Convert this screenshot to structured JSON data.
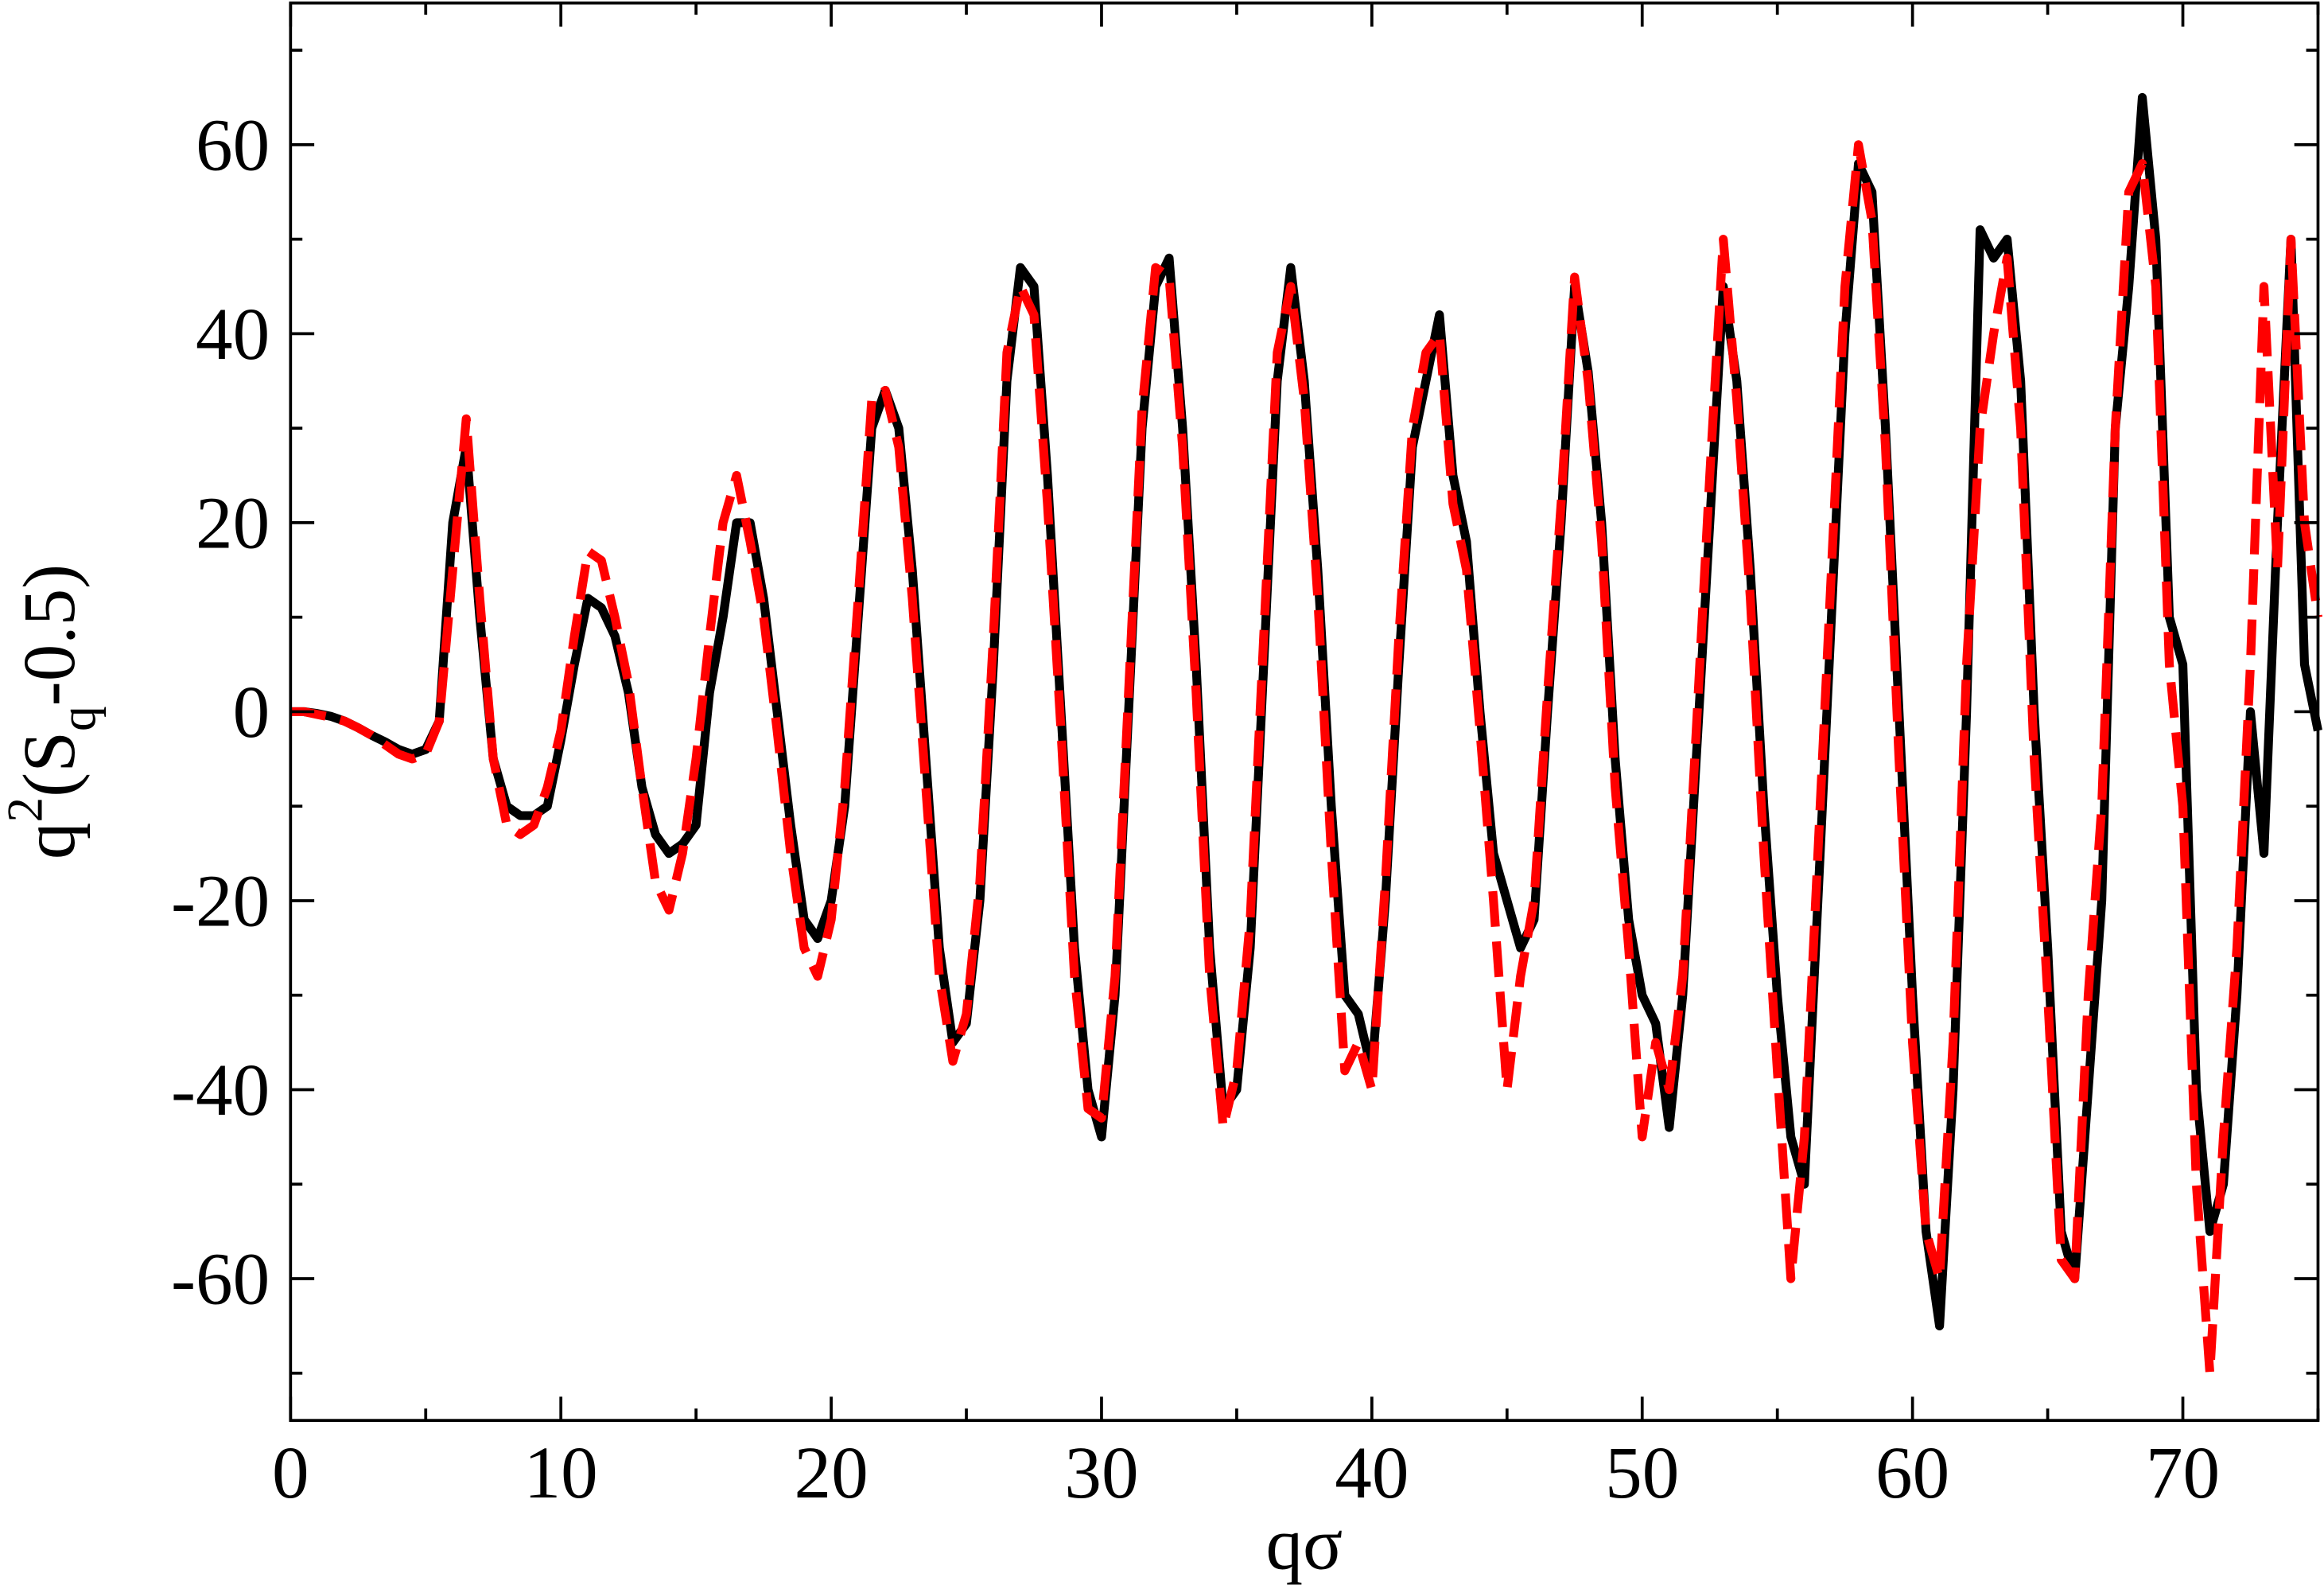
{
  "chart_data": {
    "type": "line",
    "xlabel": "qσ",
    "ylabel": [
      "q",
      "2",
      "(S",
      "q",
      "-0.5)"
    ],
    "xlim": [
      0,
      75
    ],
    "ylim": [
      -75,
      75
    ],
    "xticks": [
      0,
      10,
      20,
      30,
      40,
      50,
      60,
      70
    ],
    "yticks": [
      -60,
      -40,
      -20,
      0,
      20,
      40,
      60
    ],
    "xticks_minor": [
      5,
      15,
      25,
      35,
      45,
      55,
      65,
      75
    ],
    "yticks_minor": [
      -70,
      -50,
      -30,
      -10,
      10,
      30,
      50,
      70
    ],
    "x": [
      0,
      0.5,
      1,
      1.5,
      2,
      2.5,
      3,
      3.5,
      4,
      4.5,
      5,
      5.5,
      6,
      6.5,
      7,
      7.5,
      8,
      8.5,
      9,
      9.5,
      10,
      10.5,
      11,
      11.5,
      12,
      12.5,
      13,
      13.5,
      14,
      14.5,
      15,
      15.5,
      16,
      16.5,
      17,
      17.5,
      18,
      18.5,
      19,
      19.5,
      20,
      20.5,
      21,
      21.5,
      22,
      22.5,
      23,
      23.5,
      24,
      24.5,
      25,
      25.5,
      26,
      26.5,
      27,
      27.5,
      28,
      28.5,
      29,
      29.5,
      30,
      30.5,
      31,
      31.5,
      32,
      32.5,
      33,
      33.5,
      34,
      34.5,
      35,
      35.5,
      36,
      36.5,
      37,
      37.5,
      38,
      38.5,
      39,
      39.5,
      40,
      40.5,
      41,
      41.5,
      42,
      42.5,
      43,
      43.5,
      44,
      44.5,
      45,
      45.5,
      46,
      46.5,
      47,
      47.5,
      48,
      48.5,
      49,
      49.5,
      50,
      50.5,
      51,
      51.5,
      52,
      52.5,
      53,
      53.5,
      54,
      54.5,
      55,
      55.5,
      56,
      56.5,
      57,
      57.5,
      58,
      58.5,
      59,
      59.5,
      60,
      60.5,
      61,
      61.5,
      62,
      62.5,
      63,
      63.5,
      64,
      64.5,
      65,
      65.5,
      66,
      66.5,
      67,
      67.5,
      68,
      68.5,
      69,
      69.5,
      70,
      70.5,
      71,
      71.5,
      72,
      72.5,
      73,
      73.5,
      74,
      74.5,
      75
    ],
    "series": [
      {
        "color": "#000000",
        "dash": false,
        "values": [
          0,
          0,
          -0.2,
          -0.5,
          -1,
          -1.7,
          -2.5,
          -3.2,
          -4,
          -4.5,
          -4,
          -1,
          20,
          28,
          10,
          -5,
          -10,
          -11,
          -11,
          -10,
          -3,
          5,
          12,
          11,
          8,
          2,
          -8,
          -13,
          -15,
          -14,
          -12,
          2,
          10,
          20,
          20,
          12,
          0,
          -12,
          -22,
          -24,
          -20,
          -10,
          10,
          30,
          34,
          30,
          15,
          -5,
          -25,
          -35,
          -33,
          -20,
          5,
          35,
          47,
          45,
          25,
          0,
          -25,
          -40,
          -45,
          -30,
          0,
          30,
          45,
          48,
          30,
          5,
          -25,
          -42,
          -40,
          -25,
          5,
          35,
          47,
          35,
          15,
          -10,
          -30,
          -32,
          -38,
          -20,
          5,
          28,
          35,
          42,
          25,
          18,
          0,
          -15,
          -20,
          -25,
          -22,
          0,
          20,
          45,
          36,
          20,
          -5,
          -22,
          -30,
          -33,
          -44,
          -30,
          -5,
          20,
          45,
          35,
          15,
          -10,
          -30,
          -45,
          -50,
          -20,
          10,
          40,
          58,
          55,
          30,
          0,
          -30,
          -55,
          -65,
          -40,
          0,
          51,
          48,
          50,
          35,
          0,
          -25,
          -55,
          -60,
          -40,
          -20,
          30,
          45,
          65,
          50,
          10,
          5,
          -40,
          -55,
          -50,
          -30,
          0,
          -15,
          20,
          50,
          5,
          -2
        ]
      },
      {
        "color": "#ff0000",
        "dash": true,
        "values": [
          0,
          0,
          -0.3,
          -0.6,
          -1,
          -1.7,
          -2.5,
          -3.5,
          -4.5,
          -5,
          -4.5,
          -1,
          15,
          31,
          12,
          -5,
          -12,
          -13,
          -12,
          -8,
          -2,
          8,
          17,
          16,
          10,
          3,
          -8,
          -18,
          -21,
          -15,
          -5,
          8,
          20,
          25,
          18,
          10,
          -2,
          -15,
          -25,
          -28,
          -22,
          -8,
          12,
          33,
          34,
          28,
          12,
          -8,
          -28,
          -37,
          -32,
          -18,
          8,
          38,
          45,
          42,
          22,
          -2,
          -28,
          -42,
          -43,
          -28,
          2,
          32,
          47,
          46,
          28,
          2,
          -28,
          -44,
          -38,
          -22,
          8,
          38,
          45,
          33,
          12,
          -15,
          -38,
          -35,
          -40,
          -18,
          8,
          30,
          38,
          40,
          22,
          15,
          -2,
          -20,
          -40,
          -28,
          -20,
          2,
          22,
          46,
          35,
          18,
          -8,
          -25,
          -45,
          -35,
          -40,
          -28,
          -2,
          25,
          50,
          33,
          12,
          -15,
          -38,
          -60,
          -45,
          -15,
          15,
          45,
          60,
          52,
          28,
          -5,
          -35,
          -55,
          -60,
          -35,
          5,
          30,
          40,
          48,
          30,
          -5,
          -30,
          -58,
          -60,
          -30,
          -10,
          30,
          55,
          58,
          45,
          5,
          -10,
          -50,
          -70,
          -45,
          -25,
          5,
          45,
          15,
          50,
          20,
          10
        ]
      }
    ]
  }
}
